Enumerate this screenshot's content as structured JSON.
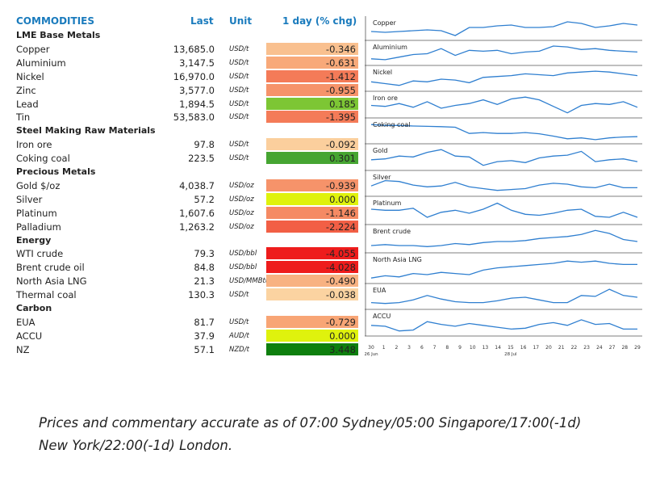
{
  "header": {
    "title": "COMMODITIES",
    "last": "Last",
    "unit": "Unit",
    "chg": "1 day (% chg)"
  },
  "rows": [
    {
      "type": "section",
      "name": "LME Base Metals"
    },
    {
      "type": "item",
      "name": "Copper",
      "last": "13,685.0",
      "unit": "USD/t",
      "chg": "-0.346",
      "color": "#f9c08f"
    },
    {
      "type": "item",
      "name": "Aluminium",
      "last": "3,147.5",
      "unit": "USD/t",
      "chg": "-0.631",
      "color": "#f8a979"
    },
    {
      "type": "item",
      "name": "Nickel",
      "last": "16,970.0",
      "unit": "USD/t",
      "chg": "-1.412",
      "color": "#f47b58"
    },
    {
      "type": "item",
      "name": "Zinc",
      "last": "3,577.0",
      "unit": "USD/t",
      "chg": "-0.955",
      "color": "#f6936a"
    },
    {
      "type": "item",
      "name": "Lead",
      "last": "1,894.5",
      "unit": "USD/t",
      "chg": "0.185",
      "color": "#7dc634"
    },
    {
      "type": "item",
      "name": "Tin",
      "last": "53,583.0",
      "unit": "USD/t",
      "chg": "-1.395",
      "color": "#f47b58"
    },
    {
      "type": "section",
      "name": "Steel Making Raw Materials"
    },
    {
      "type": "item",
      "name": "Iron ore",
      "last": "97.8",
      "unit": "USD/t",
      "chg": "-0.092",
      "color": "#fbcf9d"
    },
    {
      "type": "item",
      "name": "Coking coal",
      "last": "223.5",
      "unit": "USD/t",
      "chg": "0.301",
      "color": "#46a532"
    },
    {
      "type": "section",
      "name": "Precious Metals"
    },
    {
      "type": "item",
      "name": "Gold $/oz",
      "last": "4,038.7",
      "unit": "USD/oz",
      "chg": "-0.939",
      "color": "#f6936a"
    },
    {
      "type": "item",
      "name": "Silver",
      "last": "57.2",
      "unit": "USD/oz",
      "chg": "0.000",
      "color": "#dff20d"
    },
    {
      "type": "item",
      "name": "Platinum",
      "last": "1,607.6",
      "unit": "USD/oz",
      "chg": "-1.146",
      "color": "#f58a63"
    },
    {
      "type": "item",
      "name": "Palladium",
      "last": "1,263.2",
      "unit": "USD/oz",
      "chg": "-2.224",
      "color": "#f25f45"
    },
    {
      "type": "section",
      "name": "Energy"
    },
    {
      "type": "item",
      "name": "WTI crude",
      "last": "79.3",
      "unit": "USD/bbl",
      "chg": "-4.055",
      "color": "#ee1c1c"
    },
    {
      "type": "item",
      "name": "Brent crude oil",
      "last": "84.8",
      "unit": "USD/bbl",
      "chg": "-4.028",
      "color": "#ee1c1c"
    },
    {
      "type": "item",
      "name": "North Asia LNG",
      "last": "21.3",
      "unit": "USD/MMBtu",
      "chg": "-0.490",
      "color": "#f8b282"
    },
    {
      "type": "item",
      "name": "Thermal coal",
      "last": "130.3",
      "unit": "USD/t",
      "chg": "-0.038",
      "color": "#fbd3a1"
    },
    {
      "type": "section",
      "name": "Carbon"
    },
    {
      "type": "item",
      "name": "EUA",
      "last": "81.7",
      "unit": "USD/t",
      "chg": "-0.729",
      "color": "#f8a575"
    },
    {
      "type": "item",
      "name": "ACCU",
      "last": "37.9",
      "unit": "AUD/t",
      "chg": "0.000",
      "color": "#dff20d"
    },
    {
      "type": "item",
      "name": "NZ",
      "last": "57.1",
      "unit": "NZD/t",
      "chg": "3.448",
      "color": "#0e7f0e"
    }
  ],
  "sparklines": [
    {
      "label": "Copper",
      "values": [
        0.35,
        0.3,
        0.35,
        0.4,
        0.45,
        0.4,
        0.1,
        0.6,
        0.6,
        0.7,
        0.75,
        0.6,
        0.6,
        0.65,
        0.95,
        0.85,
        0.6,
        0.7,
        0.85,
        0.75
      ]
    },
    {
      "label": "Aluminium",
      "values": [
        0.2,
        0.15,
        0.3,
        0.45,
        0.5,
        0.8,
        0.4,
        0.7,
        0.65,
        0.7,
        0.5,
        0.6,
        0.65,
        0.95,
        0.9,
        0.75,
        0.8,
        0.7,
        0.65,
        0.6
      ]
    },
    {
      "label": "Nickel",
      "values": [
        0.35,
        0.25,
        0.15,
        0.4,
        0.35,
        0.5,
        0.45,
        0.3,
        0.6,
        0.65,
        0.7,
        0.8,
        0.75,
        0.7,
        0.85,
        0.9,
        0.95,
        0.9,
        0.8,
        0.7
      ]
    },
    {
      "label": "Iron ore",
      "values": [
        0.5,
        0.45,
        0.6,
        0.4,
        0.7,
        0.35,
        0.5,
        0.6,
        0.8,
        0.55,
        0.85,
        0.95,
        0.8,
        0.45,
        0.1,
        0.5,
        0.6,
        0.55,
        0.7,
        0.4
      ]
    },
    {
      "label": "Coking coal",
      "values": [
        0.9,
        0.85,
        0.85,
        0.82,
        0.8,
        0.78,
        0.75,
        0.4,
        0.45,
        0.4,
        0.4,
        0.45,
        0.38,
        0.25,
        0.1,
        0.15,
        0.05,
        0.15,
        0.2,
        0.22
      ]
    },
    {
      "label": "Gold",
      "values": [
        0.4,
        0.45,
        0.6,
        0.55,
        0.8,
        0.95,
        0.6,
        0.55,
        0.1,
        0.3,
        0.35,
        0.25,
        0.5,
        0.6,
        0.65,
        0.85,
        0.3,
        0.4,
        0.45,
        0.3
      ]
    },
    {
      "label": "Silver",
      "values": [
        0.4,
        0.7,
        0.65,
        0.45,
        0.35,
        0.4,
        0.6,
        0.35,
        0.25,
        0.15,
        0.2,
        0.25,
        0.45,
        0.55,
        0.5,
        0.35,
        0.3,
        0.5,
        0.3,
        0.3
      ]
    },
    {
      "label": "Platinum",
      "values": [
        0.6,
        0.55,
        0.55,
        0.65,
        0.2,
        0.45,
        0.55,
        0.4,
        0.6,
        0.9,
        0.55,
        0.35,
        0.3,
        0.4,
        0.55,
        0.6,
        0.25,
        0.2,
        0.45,
        0.2
      ]
    },
    {
      "label": "Brent crude",
      "values": [
        0.2,
        0.25,
        0.2,
        0.2,
        0.15,
        0.2,
        0.3,
        0.25,
        0.35,
        0.4,
        0.4,
        0.45,
        0.55,
        0.6,
        0.65,
        0.75,
        0.95,
        0.8,
        0.5,
        0.4
      ]
    },
    {
      "label": "North Asia LNG",
      "values": [
        0.1,
        0.2,
        0.15,
        0.3,
        0.25,
        0.35,
        0.3,
        0.25,
        0.45,
        0.55,
        0.6,
        0.65,
        0.7,
        0.75,
        0.85,
        0.8,
        0.85,
        0.75,
        0.7,
        0.7
      ]
    },
    {
      "label": "EUA",
      "values": [
        0.2,
        0.15,
        0.2,
        0.35,
        0.6,
        0.4,
        0.25,
        0.2,
        0.2,
        0.3,
        0.45,
        0.5,
        0.35,
        0.2,
        0.2,
        0.6,
        0.55,
        0.95,
        0.6,
        0.5
      ]
    },
    {
      "label": "ACCU",
      "values": [
        0.4,
        0.35,
        0.1,
        0.15,
        0.6,
        0.45,
        0.35,
        0.5,
        0.4,
        0.3,
        0.2,
        0.25,
        0.45,
        0.55,
        0.4,
        0.7,
        0.45,
        0.5,
        0.2,
        0.2
      ]
    }
  ],
  "xaxis": {
    "ticks": [
      "30",
      "1",
      "2",
      "3",
      "6",
      "7",
      "8",
      "9",
      "10",
      "13",
      "14",
      "15",
      "16",
      "17",
      "20",
      "21",
      "22",
      "23",
      "24",
      "27",
      "28",
      "29"
    ],
    "month1": "26 Jun",
    "month2": "28 Jul"
  },
  "caption": {
    "line1": "Prices and commentary accurate as of 07:00 Sydney/05:00 Singapore/17:00(-1d)",
    "line2": "New York/22:00(-1d) London."
  }
}
